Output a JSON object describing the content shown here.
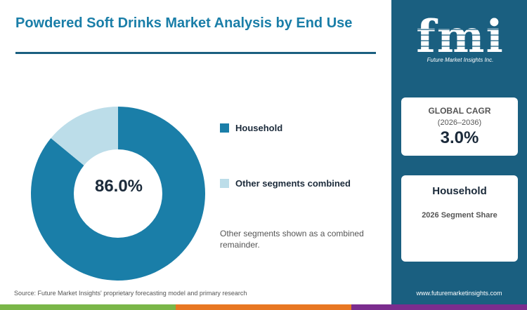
{
  "title": "Powdered Soft Drinks Market Analysis by End Use",
  "chart_data": {
    "type": "pie",
    "donut": true,
    "categories": [
      "Household",
      "Other segments combined"
    ],
    "values": [
      86.0,
      14.0
    ],
    "colors": [
      "#1a7ea8",
      "#bcdde9"
    ],
    "center_label": "86.0%",
    "legend_position": "right"
  },
  "note": "Other segments shown as a combined remainder.",
  "source": "Source: Future Market Insights' proprietary forecasting model and primary research",
  "logo": {
    "text": "fmi",
    "tagline": "Future Market Insights Inc."
  },
  "cagr": {
    "label": "GLOBAL CAGR",
    "years": "(2026–2036)",
    "value": "3.0%"
  },
  "segment": {
    "name": "Household",
    "subtitle": "2026 Segment Share"
  },
  "website": "www.futuremarketinsights.com",
  "bottom_bar_colors": [
    "#7ab648",
    "#e87722",
    "#7b2d8e"
  ]
}
